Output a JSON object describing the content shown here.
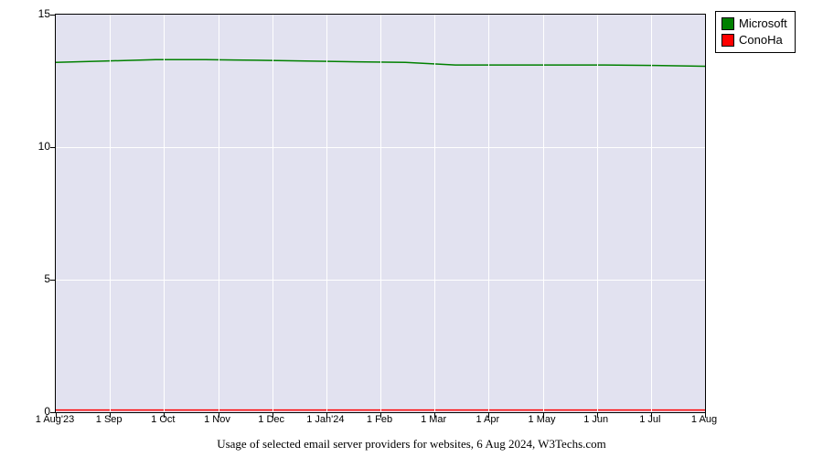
{
  "chart": {
    "type": "line",
    "background_color": "#e2e2f0",
    "grid_color": "#ffffff",
    "border_color": "#000000",
    "ylim": [
      0,
      15
    ],
    "yticks": [
      0,
      5,
      10,
      15
    ],
    "y_fontsize": 12,
    "x_fontsize": 11,
    "xlabels": [
      "1 Aug'23",
      "1 Sep",
      "1 Oct",
      "1 Nov",
      "1 Dec",
      "1 Jan'24",
      "1 Feb",
      "1 Mar",
      "1 Apr",
      "1 May",
      "1 Jun",
      "1 Jul",
      "1 Aug"
    ],
    "series": [
      {
        "name": "Microsoft",
        "color": "#008000",
        "line_width": 1.5,
        "values": [
          13.2,
          13.25,
          13.3,
          13.3,
          13.28,
          13.25,
          13.22,
          13.2,
          13.1,
          13.1,
          13.1,
          13.1,
          13.08,
          13.05
        ]
      },
      {
        "name": "ConoHa",
        "color": "#ff0000",
        "line_width": 1.5,
        "values": [
          0.08,
          0.08,
          0.08,
          0.08,
          0.08,
          0.08,
          0.08,
          0.08,
          0.08,
          0.08,
          0.08,
          0.08,
          0.08,
          0.08
        ]
      }
    ]
  },
  "legend": {
    "items": [
      {
        "label": "Microsoft",
        "color": "#008000"
      },
      {
        "label": "ConoHa",
        "color": "#ff0000"
      }
    ]
  },
  "caption": "Usage of selected email server providers for websites, 6 Aug 2024, W3Techs.com"
}
